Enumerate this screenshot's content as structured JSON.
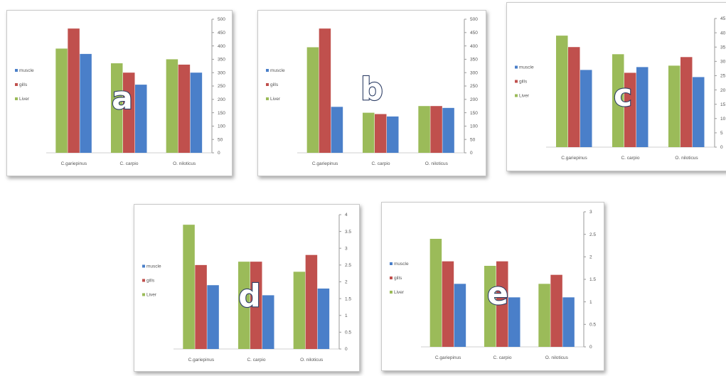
{
  "colors": {
    "muscle": "#4a7fc9",
    "gills": "#c0504d",
    "liver": "#9bbb59"
  },
  "chart_data": [
    {
      "type": "bar",
      "panel_label": "a",
      "categories": [
        "C.gariepinus",
        "C. carpio",
        "O. niloticus"
      ],
      "series": [
        {
          "name": "Liver",
          "values": [
            390,
            335,
            350
          ]
        },
        {
          "name": "gills",
          "values": [
            465,
            300,
            330
          ]
        },
        {
          "name": "muscle",
          "values": [
            370,
            255,
            300
          ]
        }
      ],
      "legend": [
        "muscle",
        "gills",
        "Liver"
      ],
      "y_ticks": [
        0,
        50,
        100,
        150,
        200,
        250,
        300,
        350,
        400,
        450,
        500
      ],
      "ylim": [
        0,
        500
      ]
    },
    {
      "type": "bar",
      "panel_label": "b",
      "categories": [
        "C.gariepinus",
        "C. carpio",
        "O. niloticus"
      ],
      "series": [
        {
          "name": "Liver",
          "values": [
            395,
            150,
            175
          ]
        },
        {
          "name": "gills",
          "values": [
            465,
            145,
            175
          ]
        },
        {
          "name": "muscle",
          "values": [
            172,
            136,
            168
          ]
        }
      ],
      "legend": [
        "muscle",
        "gills",
        "Liver"
      ],
      "y_ticks": [
        0,
        50,
        100,
        150,
        200,
        250,
        300,
        350,
        400,
        450,
        500
      ],
      "ylim": [
        0,
        500
      ]
    },
    {
      "type": "bar",
      "panel_label": "c",
      "categories": [
        "C.gariepinus",
        "C. carpio",
        "O. niloticus"
      ],
      "series": [
        {
          "name": "Liver",
          "values": [
            39,
            32.5,
            28.5
          ]
        },
        {
          "name": "gills",
          "values": [
            35,
            26,
            31.5
          ]
        },
        {
          "name": "muscle",
          "values": [
            27,
            28,
            24.5
          ]
        }
      ],
      "legend": [
        "muscle",
        "gills",
        "Liver"
      ],
      "y_ticks": [
        0,
        5,
        10,
        15,
        20,
        25,
        30,
        35,
        40,
        45
      ],
      "ylim": [
        0,
        45
      ]
    },
    {
      "type": "bar",
      "panel_label": "d",
      "categories": [
        "C.gariepinus",
        "C. carpio",
        "O. niloticus"
      ],
      "series": [
        {
          "name": "Liver",
          "values": [
            3.7,
            2.6,
            2.3
          ]
        },
        {
          "name": "gills",
          "values": [
            2.5,
            2.6,
            2.8
          ]
        },
        {
          "name": "muscle",
          "values": [
            1.9,
            1.6,
            1.8
          ]
        }
      ],
      "legend": [
        "muscle",
        "gills",
        "Liver"
      ],
      "y_ticks": [
        0,
        0.5,
        1,
        1.5,
        2,
        2.5,
        3,
        3.5,
        4
      ],
      "ylim": [
        0,
        4
      ]
    },
    {
      "type": "bar",
      "panel_label": "e",
      "categories": [
        "C.gariepinus",
        "C. carpio",
        "O. niloticus"
      ],
      "series": [
        {
          "name": "Liver",
          "values": [
            2.4,
            1.8,
            1.4
          ]
        },
        {
          "name": "gills",
          "values": [
            1.9,
            1.9,
            1.6
          ]
        },
        {
          "name": "muscle",
          "values": [
            1.4,
            1.1,
            1.1
          ]
        }
      ],
      "legend": [
        "muscle",
        "gills",
        "Liver"
      ],
      "y_ticks": [
        0,
        0.5,
        1,
        1.5,
        2,
        2.5,
        3
      ],
      "ylim": [
        0,
        3
      ]
    }
  ]
}
